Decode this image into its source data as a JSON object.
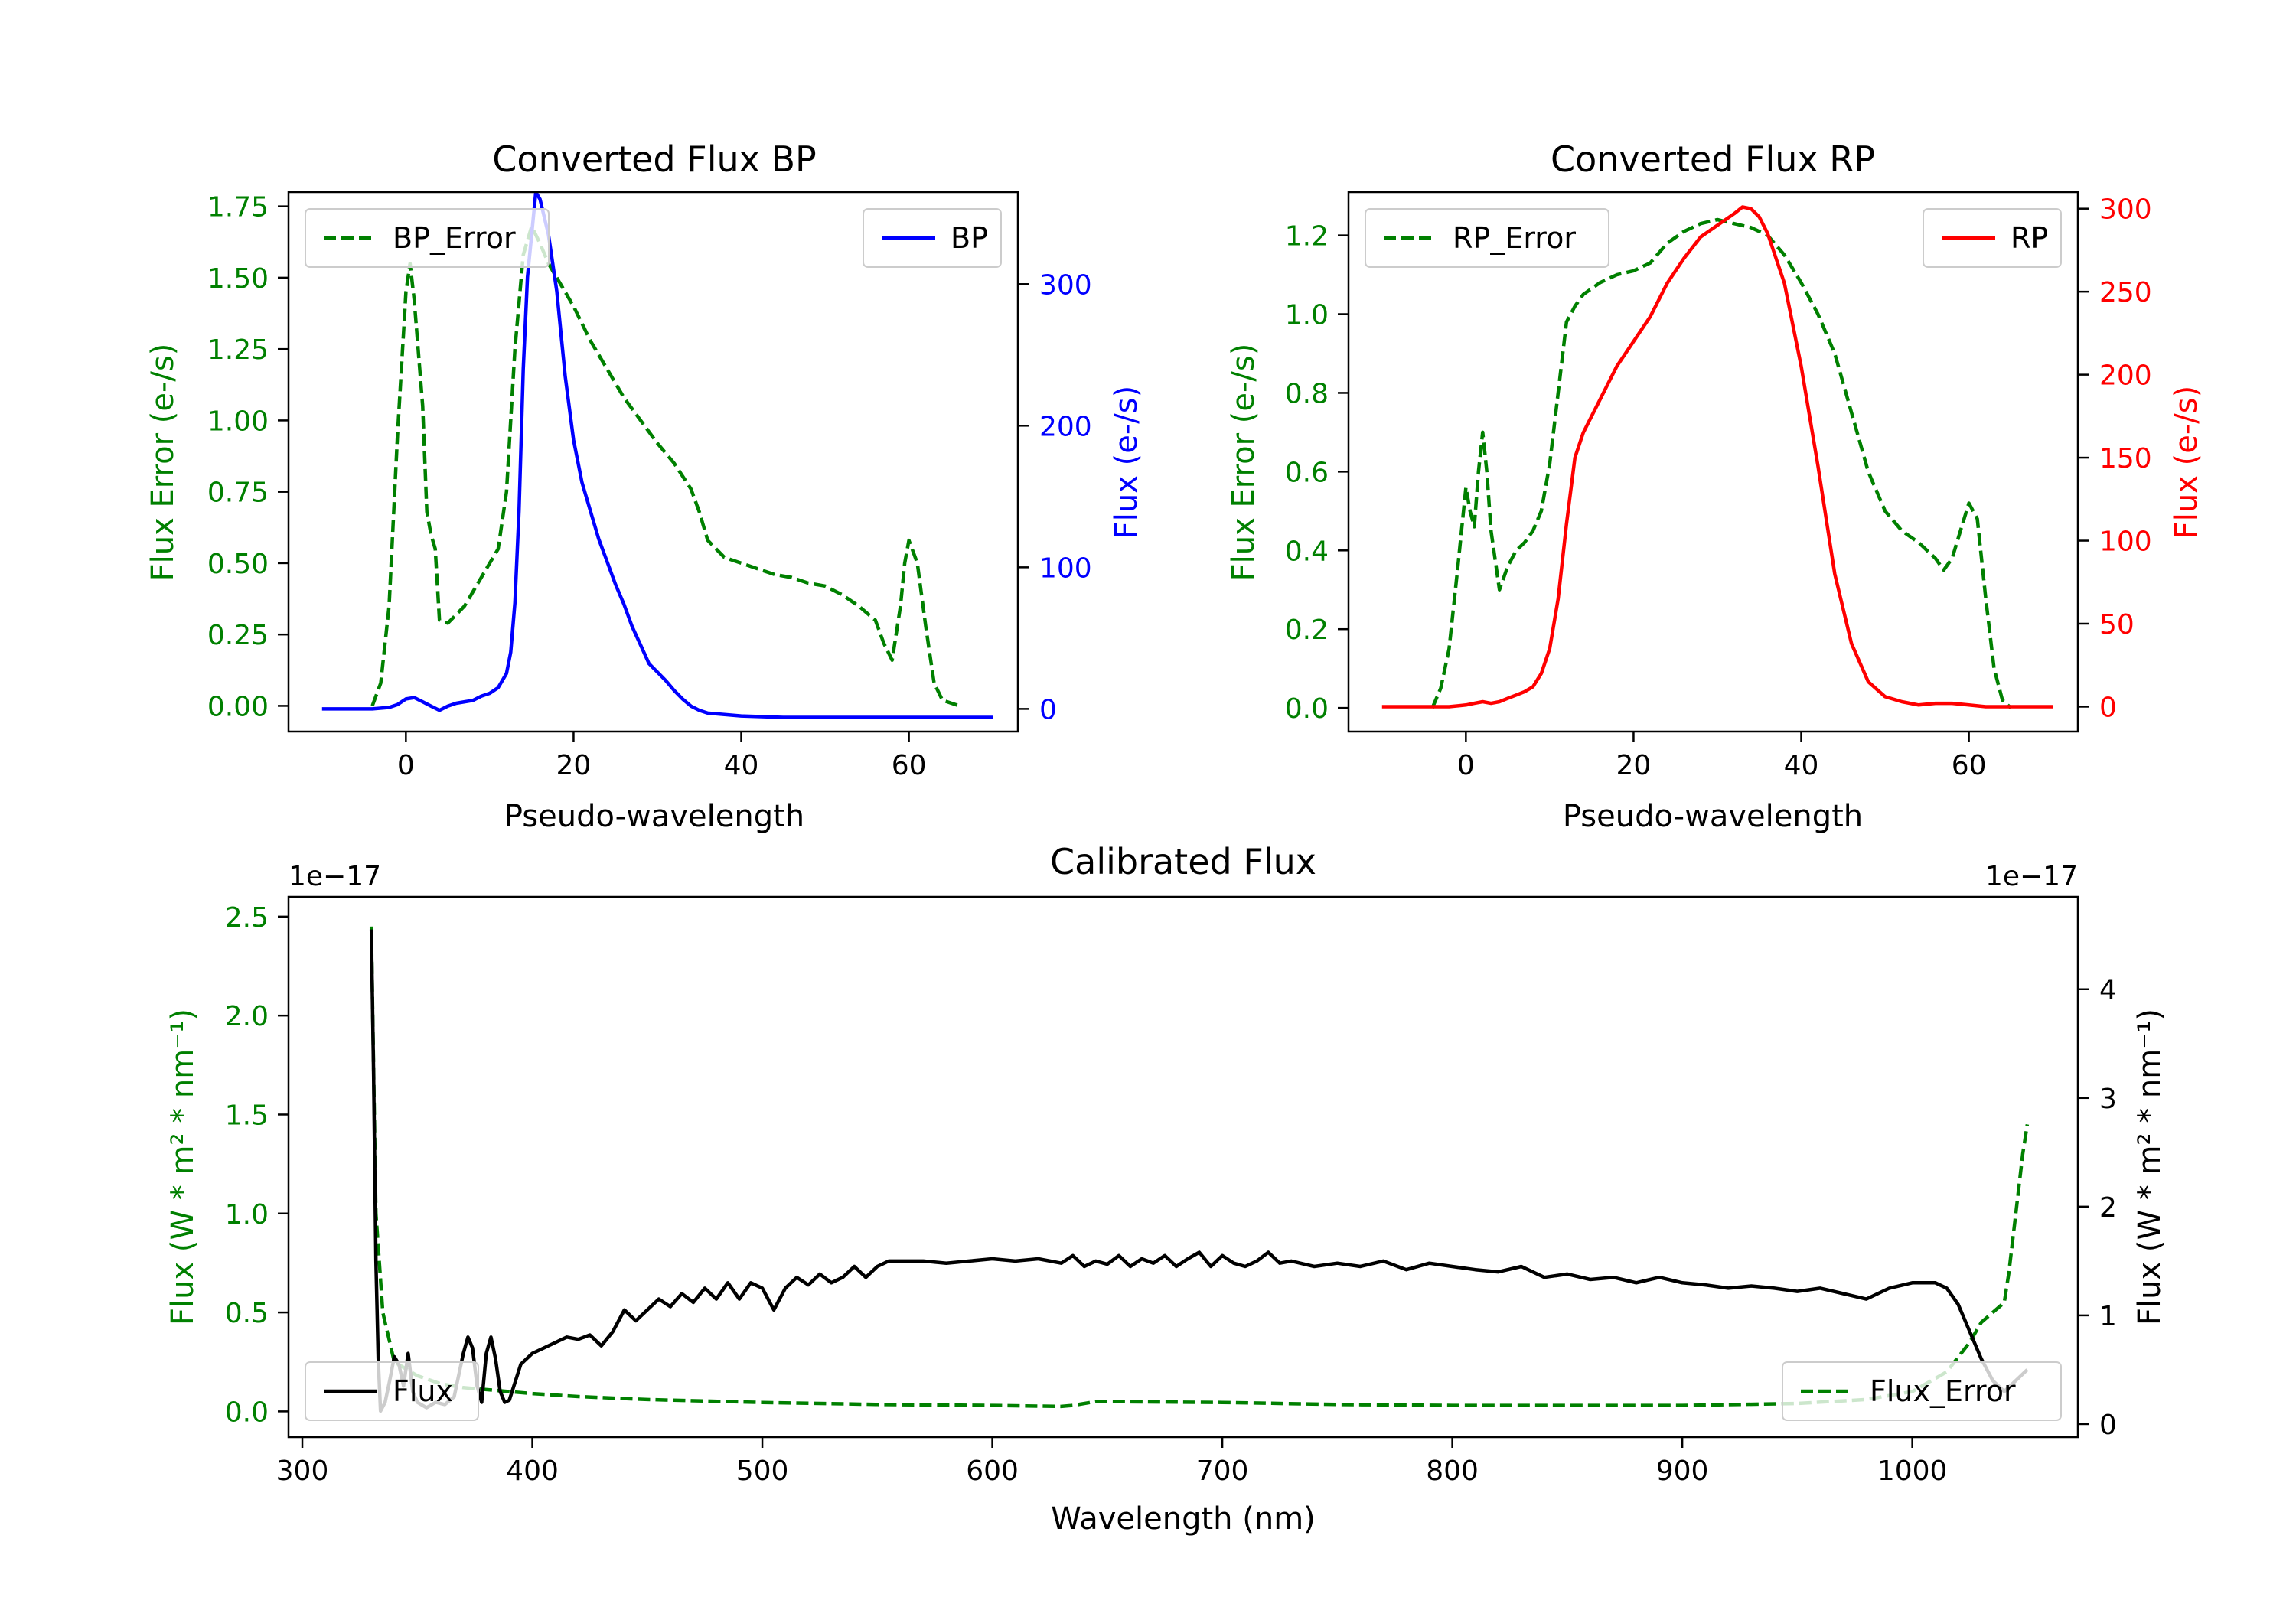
{
  "colors": {
    "green": "#008000",
    "blue": "#0000ff",
    "red": "#ff0000",
    "black": "#000000"
  },
  "chart_data": [
    {
      "id": "bp",
      "type": "line",
      "title": "Converted Flux BP",
      "xlabel": "Pseudo-wavelength",
      "ylabel_left": "Flux Error (e-/s)",
      "ylabel_right": "Flux (e-/s)",
      "xlim": [
        -14,
        73
      ],
      "ylim_left": [
        -0.09,
        1.8
      ],
      "ylim_right": [
        -16,
        365
      ],
      "xticks": [
        0,
        20,
        40,
        60
      ],
      "yticks_left": [
        "0.00",
        "0.25",
        "0.50",
        "0.75",
        "1.00",
        "1.25",
        "1.50",
        "1.75"
      ],
      "yticks_right": [
        "0",
        "100",
        "200",
        "300"
      ],
      "series": [
        {
          "name": "BP_Error",
          "axis": "left",
          "color": "#008000",
          "style": "dashed",
          "x": [
            -4,
            -3,
            -2,
            -1,
            0,
            0.5,
            1,
            2,
            2.5,
            3,
            3.5,
            4,
            5,
            6,
            7,
            8,
            9,
            10,
            11,
            12,
            13,
            14,
            15,
            16,
            17,
            18,
            19,
            20,
            22,
            24,
            26,
            28,
            30,
            32,
            34,
            35,
            36,
            38,
            40,
            42,
            44,
            46,
            48,
            50,
            52,
            54,
            56,
            57,
            58,
            59,
            59.5,
            60,
            61,
            62,
            63,
            64,
            65,
            66
          ],
          "y": [
            0.0,
            0.08,
            0.35,
            0.95,
            1.45,
            1.55,
            1.42,
            1.05,
            0.68,
            0.6,
            0.55,
            0.3,
            0.29,
            0.32,
            0.35,
            0.4,
            0.45,
            0.5,
            0.55,
            0.75,
            1.25,
            1.58,
            1.68,
            1.62,
            1.55,
            1.5,
            1.45,
            1.4,
            1.28,
            1.18,
            1.08,
            1.0,
            0.92,
            0.85,
            0.76,
            0.68,
            0.58,
            0.52,
            0.5,
            0.48,
            0.46,
            0.45,
            0.43,
            0.42,
            0.39,
            0.35,
            0.3,
            0.22,
            0.16,
            0.35,
            0.5,
            0.58,
            0.5,
            0.28,
            0.08,
            0.02,
            0.01,
            0.0
          ]
        },
        {
          "name": "BP",
          "axis": "right",
          "color": "#0000ff",
          "style": "solid",
          "x": [
            -10,
            -6,
            -4,
            -2,
            -1,
            0,
            1,
            2,
            3,
            4,
            5,
            6,
            7,
            8,
            9,
            10,
            11,
            12,
            12.5,
            13,
            13.5,
            14,
            14.5,
            15,
            15.5,
            16,
            17,
            18,
            19,
            20,
            21,
            22,
            23,
            24,
            25,
            26,
            27,
            28,
            29,
            30,
            31,
            32,
            33,
            34,
            35,
            36,
            38,
            40,
            45,
            50,
            55,
            60,
            65,
            70
          ],
          "y": [
            0,
            0,
            0,
            1,
            3,
            7,
            8,
            5,
            2,
            -1,
            2,
            4,
            5,
            6,
            9,
            11,
            15,
            25,
            40,
            75,
            140,
            240,
            305,
            335,
            365,
            360,
            335,
            295,
            235,
            190,
            160,
            140,
            120,
            104,
            88,
            74,
            58,
            45,
            32,
            26,
            20,
            13,
            7,
            2,
            -1,
            -3,
            -4,
            -5,
            -6,
            -6,
            -6,
            -6,
            -6,
            -6
          ]
        }
      ],
      "legend": [
        {
          "label": "BP_Error",
          "color": "#008000",
          "style": "dashed",
          "position": "upper left"
        },
        {
          "label": "BP",
          "color": "#0000ff",
          "style": "solid",
          "position": "upper right"
        }
      ]
    },
    {
      "id": "rp",
      "type": "line",
      "title": "Converted Flux RP",
      "xlabel": "Pseudo-wavelength",
      "ylabel_left": "Flux Error (e-/s)",
      "ylabel_right": "Flux (e-/s)",
      "xlim": [
        -14,
        73
      ],
      "ylim_left": [
        -0.06,
        1.31
      ],
      "ylim_right": [
        -15,
        310
      ],
      "xticks": [
        0,
        20,
        40,
        60
      ],
      "yticks_left": [
        "0.0",
        "0.2",
        "0.4",
        "0.6",
        "0.8",
        "1.0",
        "1.2"
      ],
      "yticks_right": [
        "0",
        "50",
        "100",
        "150",
        "200",
        "250",
        "300"
      ],
      "series": [
        {
          "name": "RP_Error",
          "axis": "left",
          "color": "#008000",
          "style": "dashed",
          "x": [
            -4,
            -3,
            -2,
            -1,
            0,
            0.5,
            1,
            1.5,
            2,
            2.5,
            3,
            4,
            5,
            6,
            7,
            8,
            9,
            10,
            11,
            12,
            13,
            14,
            16,
            18,
            20,
            22,
            24,
            26,
            28,
            30,
            32,
            34,
            36,
            38,
            40,
            42,
            44,
            46,
            48,
            50,
            52,
            54,
            55,
            56,
            57,
            58,
            59,
            60,
            61,
            62,
            63,
            64,
            65
          ],
          "y": [
            0.0,
            0.05,
            0.15,
            0.35,
            0.56,
            0.5,
            0.46,
            0.6,
            0.7,
            0.6,
            0.45,
            0.3,
            0.36,
            0.4,
            0.42,
            0.45,
            0.5,
            0.62,
            0.8,
            0.98,
            1.02,
            1.05,
            1.08,
            1.1,
            1.11,
            1.13,
            1.18,
            1.21,
            1.23,
            1.24,
            1.23,
            1.22,
            1.2,
            1.15,
            1.08,
            1.0,
            0.9,
            0.75,
            0.6,
            0.5,
            0.45,
            0.42,
            0.4,
            0.38,
            0.35,
            0.38,
            0.45,
            0.52,
            0.48,
            0.28,
            0.1,
            0.02,
            0.0
          ]
        },
        {
          "name": "RP",
          "axis": "right",
          "color": "#ff0000",
          "style": "solid",
          "x": [
            -10,
            -5,
            -2,
            0,
            1,
            2,
            3,
            4,
            5,
            6,
            7,
            8,
            9,
            10,
            11,
            12,
            13,
            14,
            16,
            18,
            20,
            22,
            24,
            26,
            28,
            30,
            32,
            33,
            34,
            35,
            36,
            38,
            40,
            42,
            44,
            46,
            48,
            50,
            52,
            54,
            56,
            58,
            60,
            62,
            65,
            70
          ],
          "y": [
            0,
            0,
            0,
            1,
            2,
            3,
            2,
            3,
            5,
            7,
            9,
            12,
            20,
            35,
            65,
            110,
            150,
            165,
            185,
            205,
            220,
            235,
            255,
            270,
            283,
            290,
            297,
            301,
            300,
            295,
            285,
            255,
            205,
            145,
            80,
            38,
            15,
            6,
            3,
            1,
            2,
            2,
            1,
            0,
            0,
            0
          ]
        }
      ],
      "legend": [
        {
          "label": "RP_Error",
          "color": "#008000",
          "style": "dashed",
          "position": "upper left"
        },
        {
          "label": "RP",
          "color": "#ff0000",
          "style": "solid",
          "position": "upper right"
        }
      ]
    },
    {
      "id": "cal",
      "type": "line",
      "title": "Calibrated Flux",
      "xlabel": "Wavelength (nm)",
      "ylabel_left": "Flux (W * m² * nm⁻¹)",
      "ylabel_right": "Flux (W * m² * nm⁻¹)",
      "offset_left": "1e−17",
      "offset_right": "1e−17",
      "xlim": [
        294,
        1072
      ],
      "ylim_left": [
        -0.13,
        2.6
      ],
      "ylim_right": [
        -0.12,
        4.85
      ],
      "xticks": [
        300,
        400,
        500,
        600,
        700,
        800,
        900,
        1000
      ],
      "yticks_left": [
        "0.0",
        "0.5",
        "1.0",
        "1.5",
        "2.0",
        "2.5"
      ],
      "yticks_right": [
        "0",
        "1",
        "2",
        "3",
        "4"
      ],
      "series": [
        {
          "name": "Flux_Error",
          "axis": "left",
          "color": "#008000",
          "style": "dashed",
          "x": [
            330,
            332,
            335,
            340,
            350,
            360,
            370,
            380,
            390,
            400,
            420,
            450,
            500,
            550,
            600,
            630,
            635,
            645,
            700,
            750,
            800,
            850,
            900,
            950,
            980,
            1000,
            1015,
            1025,
            1030,
            1035,
            1040,
            1042,
            1045,
            1048,
            1050
          ],
          "y": [
            2.45,
            1.0,
            0.5,
            0.25,
            0.18,
            0.14,
            0.12,
            0.11,
            0.1,
            0.09,
            0.075,
            0.06,
            0.045,
            0.035,
            0.03,
            0.025,
            0.03,
            0.05,
            0.045,
            0.035,
            0.03,
            0.03,
            0.03,
            0.04,
            0.06,
            0.1,
            0.2,
            0.35,
            0.45,
            0.5,
            0.55,
            0.7,
            1.0,
            1.3,
            1.45
          ]
        },
        {
          "name": "Flux",
          "axis": "right",
          "color": "#000000",
          "style": "solid",
          "x": [
            330,
            331,
            332,
            333,
            334,
            336,
            338,
            340,
            342,
            344,
            346,
            348,
            350,
            354,
            358,
            362,
            366,
            370,
            372,
            374,
            376,
            378,
            380,
            382,
            384,
            386,
            388,
            390,
            395,
            400,
            405,
            410,
            415,
            420,
            425,
            430,
            435,
            440,
            445,
            450,
            455,
            460,
            465,
            470,
            475,
            480,
            485,
            490,
            495,
            500,
            505,
            510,
            515,
            520,
            525,
            530,
            535,
            540,
            545,
            550,
            555,
            560,
            570,
            580,
            590,
            600,
            610,
            620,
            630,
            635,
            640,
            645,
            650,
            655,
            660,
            665,
            670,
            675,
            680,
            685,
            690,
            695,
            700,
            705,
            710,
            715,
            720,
            725,
            730,
            740,
            750,
            760,
            770,
            780,
            790,
            800,
            810,
            820,
            830,
            840,
            850,
            860,
            870,
            880,
            890,
            900,
            910,
            920,
            930,
            940,
            950,
            960,
            970,
            980,
            990,
            1000,
            1010,
            1015,
            1020,
            1025,
            1030,
            1035,
            1040,
            1045,
            1050
          ],
          "y": [
            4.55,
            3.2,
            1.5,
            0.6,
            0.12,
            0.2,
            0.4,
            0.62,
            0.55,
            0.35,
            0.65,
            0.3,
            0.2,
            0.15,
            0.2,
            0.18,
            0.25,
            0.65,
            0.8,
            0.7,
            0.35,
            0.2,
            0.65,
            0.8,
            0.6,
            0.3,
            0.2,
            0.22,
            0.55,
            0.65,
            0.7,
            0.75,
            0.8,
            0.78,
            0.82,
            0.72,
            0.85,
            1.05,
            0.95,
            1.05,
            1.15,
            1.08,
            1.2,
            1.12,
            1.25,
            1.15,
            1.3,
            1.15,
            1.3,
            1.25,
            1.05,
            1.25,
            1.35,
            1.28,
            1.38,
            1.3,
            1.35,
            1.45,
            1.35,
            1.45,
            1.5,
            1.5,
            1.5,
            1.48,
            1.5,
            1.52,
            1.5,
            1.52,
            1.48,
            1.55,
            1.45,
            1.5,
            1.47,
            1.55,
            1.45,
            1.52,
            1.48,
            1.55,
            1.45,
            1.52,
            1.58,
            1.45,
            1.55,
            1.48,
            1.45,
            1.5,
            1.58,
            1.48,
            1.5,
            1.45,
            1.48,
            1.45,
            1.5,
            1.42,
            1.48,
            1.45,
            1.42,
            1.4,
            1.45,
            1.35,
            1.38,
            1.33,
            1.35,
            1.3,
            1.35,
            1.3,
            1.28,
            1.25,
            1.27,
            1.25,
            1.22,
            1.25,
            1.2,
            1.15,
            1.25,
            1.3,
            1.3,
            1.25,
            1.1,
            0.85,
            0.6,
            0.4,
            0.3,
            0.4,
            0.5
          ]
        }
      ],
      "legend": [
        {
          "label": "Flux",
          "color": "#000000",
          "style": "solid",
          "position": "lower left"
        },
        {
          "label": "Flux_Error",
          "color": "#008000",
          "style": "dashed",
          "position": "lower right"
        }
      ]
    }
  ]
}
